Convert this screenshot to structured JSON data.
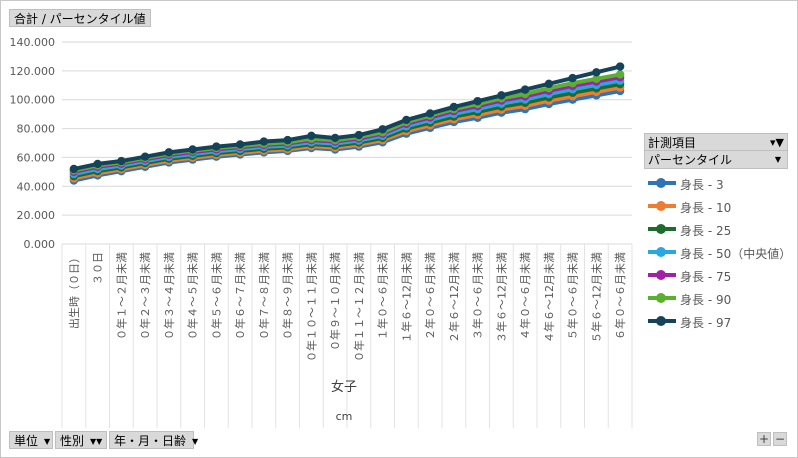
{
  "top_button": {
    "label": "合計 / パーセンタイル値"
  },
  "axis_title": "女子",
  "unit_label": "cm",
  "bottom_fields": [
    {
      "label": "単位",
      "icon": "dropdown-arrow-icon"
    },
    {
      "label": "性別",
      "icon": "filter-dropdown-icon"
    },
    {
      "label": "年・月・日齢",
      "icon": "dropdown-arrow-icon"
    }
  ],
  "legend": {
    "field_label": "計測項目",
    "sub_label": "パーセンタイル"
  },
  "zoom": {
    "plus": "+",
    "minus": "−"
  },
  "chart_data": {
    "type": "line",
    "ylim": [
      0,
      140
    ],
    "y_tick_labels": [
      "0.000",
      "20.000",
      "40.000",
      "60.000",
      "80.000",
      "100.000",
      "120.000",
      "140.000"
    ],
    "categories": [
      "出生時（０日）",
      "３０日",
      "０年１～２月未満",
      "０年２～３月未満",
      "０年３～４月未満",
      "０年４～５月未満",
      "０年５～６月未満",
      "０年６～７月未満",
      "０年７～８月未満",
      "０年８～９月未満",
      "０年１０～１１月未満",
      "０年９～１０月未満",
      "０年１１～１２月未満",
      "１年０～６月未満",
      "１年６～12月未満",
      "２年０～６月未満",
      "２年６～12月未満",
      "３年０～６月未満",
      "３年６～12月未満",
      "４年０～６月未満",
      "４年６～12月未満",
      "５年０～６月未満",
      "５年６～12月未満",
      "６年０～６月未満"
    ],
    "series": [
      {
        "name": "身長 - 3",
        "color": "#2e75b6",
        "values": [
          44.0,
          47.5,
          50.5,
          53.5,
          56.5,
          58.5,
          60.5,
          62.0,
          63.5,
          64.5,
          66.5,
          65.5,
          67.5,
          70.5,
          76.5,
          80.5,
          84.5,
          87.5,
          91.0,
          93.5,
          97.0,
          100.0,
          103.0,
          106.0
        ]
      },
      {
        "name": "身長 - 10",
        "color": "#ed7d31",
        "values": [
          45.5,
          49.0,
          51.8,
          54.8,
          57.8,
          59.8,
          61.7,
          63.2,
          64.7,
          65.7,
          67.8,
          66.8,
          68.9,
          72.0,
          78.2,
          82.3,
          86.4,
          89.5,
          93.1,
          95.7,
          99.3,
          102.4,
          105.4,
          108.4
        ]
      },
      {
        "name": "身長 - 25",
        "color": "#1e6b2e",
        "values": [
          47.0,
          50.5,
          53.1,
          56.1,
          59.1,
          61.1,
          63.0,
          64.5,
          66.0,
          67.0,
          69.2,
          68.2,
          70.3,
          73.5,
          79.9,
          84.1,
          88.3,
          91.5,
          95.2,
          97.9,
          101.6,
          104.8,
          107.8,
          110.8
        ]
      },
      {
        "name": "身長 - 50（中央値）",
        "color": "#29a8e0",
        "values": [
          48.5,
          52.0,
          54.4,
          57.4,
          60.4,
          62.4,
          64.3,
          65.8,
          67.3,
          68.3,
          70.6,
          69.6,
          71.7,
          75.0,
          81.6,
          85.9,
          90.2,
          93.5,
          97.3,
          100.1,
          103.9,
          107.2,
          110.2,
          113.2
        ]
      },
      {
        "name": "身長 - 75",
        "color": "#a020a8",
        "values": [
          50.0,
          53.5,
          55.7,
          58.7,
          61.7,
          63.7,
          65.6,
          67.1,
          68.6,
          69.6,
          72.0,
          71.0,
          73.1,
          76.5,
          83.3,
          87.7,
          92.1,
          95.5,
          99.4,
          102.3,
          106.2,
          109.6,
          112.6,
          115.6
        ]
      },
      {
        "name": "身長 - 90",
        "color": "#5cb030",
        "values": [
          51.0,
          54.5,
          56.6,
          59.6,
          62.6,
          64.6,
          66.5,
          68.0,
          69.5,
          70.5,
          73.0,
          72.0,
          74.1,
          77.5,
          84.5,
          89.0,
          93.5,
          97.0,
          101.0,
          104.0,
          108.0,
          111.5,
          114.5,
          117.5
        ]
      },
      {
        "name": "身長 - 97",
        "color": "#14435a",
        "values": [
          52.0,
          55.5,
          57.5,
          60.5,
          63.5,
          65.5,
          67.5,
          69.0,
          71.0,
          72.0,
          75.0,
          73.5,
          75.5,
          79.5,
          86.0,
          90.5,
          95.0,
          99.0,
          103.0,
          107.0,
          111.0,
          115.0,
          119.0,
          123.0
        ]
      }
    ]
  }
}
